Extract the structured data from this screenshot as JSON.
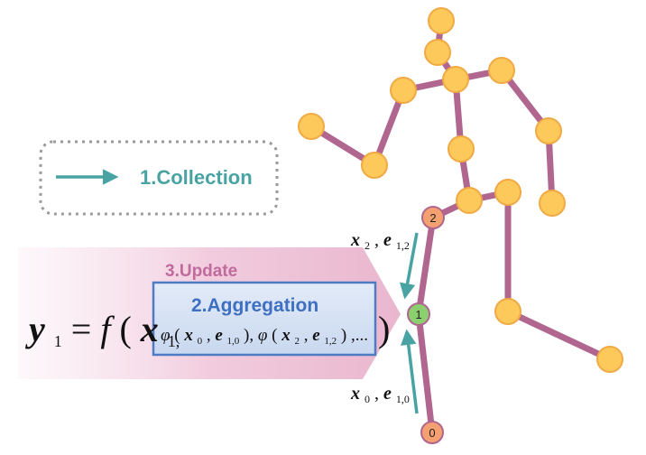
{
  "legend": {
    "label": "1.Collection",
    "arrow_color": "#4aa3a3"
  },
  "update": {
    "label": "3.Update",
    "color": "#c06a9e"
  },
  "aggregation": {
    "label": "2.Aggregation",
    "color": "#3d6fc2"
  },
  "formula": {
    "lhs_var": "y",
    "lhs_sub": "1",
    "equals": " = ",
    "func": "f",
    "open_paren": "(",
    "arg_var": "x",
    "arg_sub": "1,",
    "close_paren": ")",
    "phi": "φ",
    "x0": "x",
    "x0_sub": "0",
    "e10": "e",
    "e10_sub": "1,0",
    "x2": "x",
    "x2_sub": "2",
    "e12": "e",
    "e12_sub": "1,2",
    "ellipsis": ",..."
  },
  "messages": {
    "top_x": "x",
    "top_x_sub": "2",
    "top_e": "e",
    "top_e_sub": "1,2",
    "bottom_x": "x",
    "bottom_x_sub": "0",
    "bottom_e": "e",
    "bottom_e_sub": "1,0"
  },
  "nodes": {
    "node_2_label": "2",
    "node_1_label": "1",
    "node_0_label": "0"
  },
  "colors": {
    "bone": "#b0668f",
    "joint_fill": "#fdc95a",
    "joint_stroke": "#f0a944",
    "node_orange": "#f5a070",
    "node_green": "#8ccf6e",
    "collection_arrow": "#4aa3a3"
  }
}
